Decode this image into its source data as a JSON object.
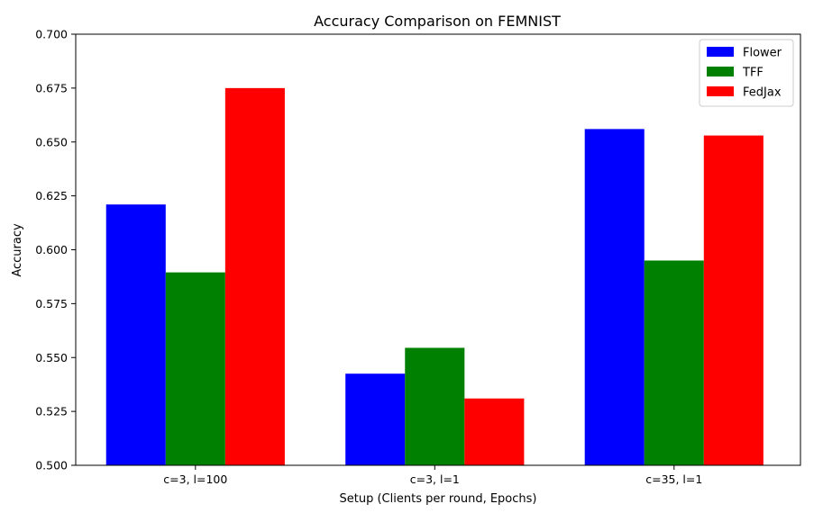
{
  "chart_data": {
    "type": "bar",
    "title": "Accuracy Comparison on FEMNIST",
    "xlabel": "Setup (Clients per round, Epochs)",
    "ylabel": "Accuracy",
    "categories": [
      "c=3, l=100",
      "c=3, l=1",
      "c=35, l=1"
    ],
    "series": [
      {
        "name": "Flower",
        "color": "#0000ff",
        "values": [
          0.621,
          0.5425,
          0.656
        ]
      },
      {
        "name": "TFF",
        "color": "#008000",
        "values": [
          0.5895,
          0.5545,
          0.595
        ]
      },
      {
        "name": "FedJax",
        "color": "#ff0000",
        "values": [
          0.675,
          0.531,
          0.653
        ]
      }
    ],
    "ylim": [
      0.5,
      0.7
    ],
    "yticks": [
      "0.500",
      "0.525",
      "0.550",
      "0.575",
      "0.600",
      "0.625",
      "0.650",
      "0.675",
      "0.700"
    ],
    "grid": false,
    "legend_position": "top-right"
  }
}
